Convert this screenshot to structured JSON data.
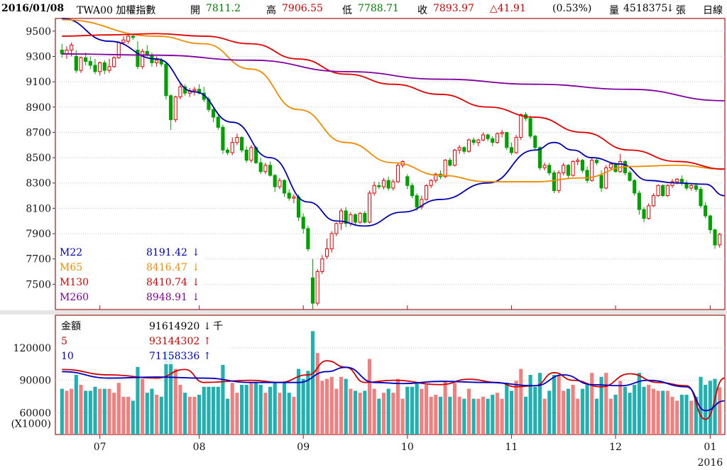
{
  "header": {
    "date": "2016/01/08",
    "symbol": "TWA00 加權指數",
    "open_label": "開",
    "open": "7811.2",
    "high_label": "高",
    "high": "7906.55",
    "low_label": "低",
    "low": "7788.71",
    "close_label": "收",
    "close": "7893.97",
    "change": "△41.91",
    "change_pct": "(0.53%)",
    "volume_label": "量",
    "volume": "4518375",
    "volume_arrow": "↓",
    "volume_unit": "張",
    "period": "日線"
  },
  "colors": {
    "up": "#e60000",
    "up_fill": "#ffffff",
    "down": "#00a000",
    "m22": "#0000b0",
    "m65": "#f08c00",
    "m130": "#e00000",
    "m260": "#8000a0",
    "vol_up": "#f08080",
    "vol_down": "#20b0b0",
    "vol_ma5": "#d00000",
    "vol_ma10": "#0000c0",
    "frame": "#9c1c1c",
    "grid": "#c8c8c8"
  },
  "chart_data": [
    {
      "type": "candlestick",
      "name": "price",
      "ylim": [
        7300,
        9600
      ],
      "y_ticks": [
        9500,
        9300,
        9100,
        8900,
        8700,
        8500,
        8300,
        8100,
        7900,
        7700,
        7500
      ],
      "x_ticks": [
        "07",
        "08",
        "09",
        "10",
        "11",
        "12",
        "01"
      ],
      "x_sub_label": "2016",
      "candles": [
        [
          9350,
          9400,
          9290,
          9320
        ],
        [
          9320,
          9380,
          9280,
          9350
        ],
        [
          9350,
          9410,
          9300,
          9390
        ],
        [
          9300,
          9350,
          9170,
          9190
        ],
        [
          9190,
          9300,
          9170,
          9290
        ],
        [
          9290,
          9330,
          9230,
          9260
        ],
        [
          9260,
          9300,
          9200,
          9230
        ],
        [
          9230,
          9280,
          9160,
          9180
        ],
        [
          9180,
          9260,
          9150,
          9250
        ],
        [
          9250,
          9270,
          9160,
          9190
        ],
        [
          9190,
          9280,
          9170,
          9220
        ],
        [
          9220,
          9300,
          9210,
          9290
        ],
        [
          9290,
          9420,
          9280,
          9410
        ],
        [
          9410,
          9460,
          9390,
          9430
        ],
        [
          9420,
          9470,
          9400,
          9460
        ],
        [
          9460,
          9480,
          9430,
          9450
        ],
        [
          9350,
          9420,
          9200,
          9220
        ],
        [
          9220,
          9360,
          9200,
          9340
        ],
        [
          9340,
          9390,
          9300,
          9310
        ],
        [
          9310,
          9330,
          9220,
          9250
        ],
        [
          9250,
          9300,
          9220,
          9270
        ],
        [
          9270,
          9290,
          9220,
          9240
        ],
        [
          9240,
          9260,
          8960,
          8990
        ],
        [
          8990,
          9000,
          8720,
          8800
        ],
        [
          8800,
          8990,
          8780,
          8980
        ],
        [
          8980,
          9090,
          8960,
          9060
        ],
        [
          9060,
          9080,
          8990,
          9010
        ],
        [
          9010,
          9050,
          8980,
          9030
        ],
        [
          9030,
          9060,
          8990,
          9040
        ],
        [
          9040,
          9080,
          9000,
          9010
        ],
        [
          9010,
          9060,
          8940,
          8960
        ],
        [
          8960,
          8980,
          8860,
          8880
        ],
        [
          8880,
          8900,
          8780,
          8820
        ],
        [
          8820,
          8840,
          8720,
          8740
        ],
        [
          8740,
          8760,
          8530,
          8560
        ],
        [
          8560,
          8580,
          8520,
          8540
        ],
        [
          8540,
          8660,
          8520,
          8620
        ],
        [
          8620,
          8690,
          8600,
          8660
        ],
        [
          8660,
          8670,
          8540,
          8560
        ],
        [
          8560,
          8590,
          8460,
          8480
        ],
        [
          8480,
          8600,
          8460,
          8580
        ],
        [
          8580,
          8590,
          8450,
          8460
        ],
        [
          8460,
          8500,
          8370,
          8390
        ],
        [
          8390,
          8460,
          8370,
          8440
        ],
        [
          8440,
          8470,
          8350,
          8360
        ],
        [
          8360,
          8370,
          8230,
          8270
        ],
        [
          8270,
          8340,
          8250,
          8320
        ],
        [
          8320,
          8330,
          8190,
          8220
        ],
        [
          8220,
          8250,
          8160,
          8180
        ],
        [
          8180,
          8210,
          8140,
          8190
        ],
        [
          8190,
          8210,
          8000,
          8030
        ],
        [
          8030,
          8060,
          7900,
          7940
        ],
        [
          7940,
          7960,
          7760,
          7780
        ],
        [
          7550,
          7700,
          7300,
          7350
        ],
        [
          7350,
          7620,
          7330,
          7600
        ],
        [
          7600,
          7730,
          7580,
          7700
        ],
        [
          7720,
          7860,
          7700,
          7780
        ],
        [
          7780,
          7920,
          7750,
          7900
        ],
        [
          7900,
          7990,
          7880,
          7980
        ],
        [
          7980,
          8100,
          7930,
          8080
        ],
        [
          8080,
          8110,
          7950,
          7980
        ],
        [
          7980,
          8070,
          7960,
          8050
        ],
        [
          8050,
          8060,
          7960,
          7990
        ],
        [
          7990,
          8070,
          7980,
          8060
        ],
        [
          8060,
          8080,
          7980,
          7990
        ],
        [
          7990,
          8240,
          7980,
          8220
        ],
        [
          8220,
          8310,
          8200,
          8280
        ],
        [
          8280,
          8310,
          8250,
          8270
        ],
        [
          8270,
          8340,
          8250,
          8320
        ],
        [
          8320,
          8350,
          8240,
          8260
        ],
        [
          8260,
          8330,
          8240,
          8310
        ],
        [
          8310,
          8460,
          8300,
          8440
        ],
        [
          8440,
          8480,
          8420,
          8470
        ],
        [
          8350,
          8370,
          8250,
          8280
        ],
        [
          8280,
          8300,
          8180,
          8200
        ],
        [
          8200,
          8220,
          8080,
          8110
        ],
        [
          8110,
          8200,
          8090,
          8170
        ],
        [
          8170,
          8290,
          8160,
          8280
        ],
        [
          8280,
          8330,
          8260,
          8320
        ],
        [
          8320,
          8380,
          8300,
          8370
        ],
        [
          8370,
          8400,
          8330,
          8350
        ],
        [
          8350,
          8490,
          8340,
          8480
        ],
        [
          8480,
          8500,
          8430,
          8440
        ],
        [
          8440,
          8570,
          8430,
          8560
        ],
        [
          8560,
          8600,
          8530,
          8580
        ],
        [
          8580,
          8590,
          8530,
          8550
        ],
        [
          8550,
          8650,
          8540,
          8640
        ],
        [
          8640,
          8660,
          8600,
          8620
        ],
        [
          8620,
          8650,
          8590,
          8640
        ],
        [
          8640,
          8700,
          8630,
          8680
        ],
        [
          8680,
          8690,
          8630,
          8650
        ],
        [
          8650,
          8670,
          8590,
          8620
        ],
        [
          8620,
          8700,
          8610,
          8690
        ],
        [
          8690,
          8720,
          8660,
          8700
        ],
        [
          8700,
          8700,
          8560,
          8580
        ],
        [
          8580,
          8620,
          8520,
          8540
        ],
        [
          8540,
          8680,
          8530,
          8660
        ],
        [
          8660,
          8850,
          8640,
          8840
        ],
        [
          8840,
          8860,
          8790,
          8810
        ],
        [
          8810,
          8830,
          8650,
          8670
        ],
        [
          8670,
          8680,
          8560,
          8580
        ],
        [
          8580,
          8590,
          8400,
          8420
        ],
        [
          8420,
          8460,
          8400,
          8440
        ],
        [
          8440,
          8460,
          8360,
          8380
        ],
        [
          8380,
          8400,
          8220,
          8240
        ],
        [
          8240,
          8400,
          8220,
          8380
        ],
        [
          8380,
          8460,
          8360,
          8440
        ],
        [
          8440,
          8450,
          8340,
          8360
        ],
        [
          8360,
          8480,
          8350,
          8470
        ],
        [
          8470,
          8500,
          8440,
          8480
        ],
        [
          8480,
          8490,
          8380,
          8400
        ],
        [
          8400,
          8430,
          8300,
          8320
        ],
        [
          8320,
          8500,
          8310,
          8480
        ],
        [
          8480,
          8500,
          8440,
          8460
        ],
        [
          8360,
          8400,
          8230,
          8260
        ],
        [
          8260,
          8440,
          8250,
          8420
        ],
        [
          8420,
          8460,
          8400,
          8450
        ],
        [
          8450,
          8460,
          8380,
          8390
        ],
        [
          8390,
          8530,
          8380,
          8470
        ],
        [
          8470,
          8480,
          8360,
          8380
        ],
        [
          8380,
          8400,
          8310,
          8320
        ],
        [
          8320,
          8330,
          8200,
          8220
        ],
        [
          8220,
          8240,
          8050,
          8090
        ],
        [
          8090,
          8110,
          7990,
          8020
        ],
        [
          8020,
          8140,
          8010,
          8120
        ],
        [
          8120,
          8220,
          8110,
          8200
        ],
        [
          8200,
          8290,
          8190,
          8280
        ],
        [
          8280,
          8290,
          8190,
          8200
        ],
        [
          8200,
          8290,
          8190,
          8280
        ],
        [
          8280,
          8330,
          8260,
          8310
        ],
        [
          8310,
          8340,
          8290,
          8330
        ],
        [
          8330,
          8360,
          8280,
          8300
        ],
        [
          8300,
          8320,
          8240,
          8260
        ],
        [
          8260,
          8290,
          8240,
          8280
        ],
        [
          8280,
          8300,
          8230,
          8250
        ],
        [
          8250,
          8270,
          8100,
          8120
        ],
        [
          8120,
          8150,
          8020,
          8040
        ],
        [
          8040,
          8050,
          7900,
          7930
        ],
        [
          7930,
          7940,
          7780,
          7810
        ],
        [
          7811.2,
          7906.55,
          7788.71,
          7893.97
        ]
      ],
      "moving_averages": [
        {
          "name": "M22",
          "value": "8191.42",
          "arrow": "↓"
        },
        {
          "name": "M65",
          "value": "8416.47",
          "arrow": "↓"
        },
        {
          "name": "M130",
          "value": "8410.74",
          "arrow": "↓"
        },
        {
          "name": "M260",
          "value": "8948.91",
          "arrow": "↓"
        }
      ],
      "ma_lines": {
        "M22": [
          [
            0,
            9600
          ],
          [
            10,
            9420
          ],
          [
            20,
            9280
          ],
          [
            28,
            9020
          ],
          [
            36,
            8780
          ],
          [
            44,
            8500
          ],
          [
            52,
            8150
          ],
          [
            58,
            8000
          ],
          [
            64,
            7960
          ],
          [
            72,
            8070
          ],
          [
            80,
            8170
          ],
          [
            90,
            8300
          ],
          [
            100,
            8560
          ],
          [
            104,
            8620
          ],
          [
            108,
            8560
          ],
          [
            112,
            8500
          ],
          [
            118,
            8450
          ],
          [
            124,
            8320
          ],
          [
            130,
            8300
          ],
          [
            136,
            8290
          ],
          [
            140,
            8200
          ]
        ],
        "M65": [
          [
            0,
            9590
          ],
          [
            20,
            9460
          ],
          [
            30,
            9400
          ],
          [
            40,
            9200
          ],
          [
            50,
            8880
          ],
          [
            60,
            8620
          ],
          [
            70,
            8460
          ],
          [
            80,
            8360
          ],
          [
            90,
            8310
          ],
          [
            100,
            8310
          ],
          [
            110,
            8340
          ],
          [
            120,
            8430
          ],
          [
            130,
            8440
          ],
          [
            140,
            8410
          ]
        ],
        "M130": [
          [
            0,
            9460
          ],
          [
            10,
            9470
          ],
          [
            20,
            9480
          ],
          [
            30,
            9460
          ],
          [
            40,
            9400
          ],
          [
            50,
            9280
          ],
          [
            60,
            9160
          ],
          [
            70,
            9080
          ],
          [
            80,
            9000
          ],
          [
            90,
            8900
          ],
          [
            100,
            8820
          ],
          [
            110,
            8700
          ],
          [
            120,
            8560
          ],
          [
            130,
            8470
          ],
          [
            140,
            8410
          ]
        ],
        "M260": [
          [
            0,
            9320
          ],
          [
            20,
            9310
          ],
          [
            40,
            9270
          ],
          [
            60,
            9180
          ],
          [
            80,
            9120
          ],
          [
            100,
            9080
          ],
          [
            120,
            9040
          ],
          [
            140,
            8950
          ]
        ]
      }
    },
    {
      "type": "bar",
      "name": "turnover",
      "ylim": [
        40000,
        150000
      ],
      "y_ticks": [
        120000,
        90000,
        60000
      ],
      "y_unit_label": "(X1000)",
      "legend": [
        {
          "name": "金額",
          "value": "91614920",
          "arrow": "↓",
          "unit": "千"
        },
        {
          "name": "5",
          "value": "93144302",
          "arrow": "↑",
          "unit": ""
        },
        {
          "name": "10",
          "value": "71158336",
          "arrow": "↑",
          "unit": ""
        }
      ],
      "ma5_line": [
        [
          0,
          100000
        ],
        [
          10,
          95000
        ],
        [
          20,
          92000
        ],
        [
          26,
          100000
        ],
        [
          30,
          88000
        ],
        [
          40,
          90000
        ],
        [
          46,
          88000
        ],
        [
          52,
          95000
        ],
        [
          56,
          108000
        ],
        [
          60,
          102000
        ],
        [
          64,
          88000
        ],
        [
          70,
          90000
        ],
        [
          80,
          86000
        ],
        [
          86,
          91000
        ],
        [
          92,
          88000
        ],
        [
          96,
          84000
        ],
        [
          100,
          85000
        ],
        [
          104,
          97000
        ],
        [
          108,
          90000
        ],
        [
          114,
          84000
        ],
        [
          120,
          96000
        ],
        [
          126,
          88000
        ],
        [
          132,
          85000
        ],
        [
          136,
          54000
        ],
        [
          140,
          92000
        ]
      ],
      "ma10_line": [
        [
          0,
          98000
        ],
        [
          10,
          92000
        ],
        [
          20,
          93000
        ],
        [
          30,
          92000
        ],
        [
          40,
          88000
        ],
        [
          50,
          88000
        ],
        [
          56,
          98000
        ],
        [
          60,
          102000
        ],
        [
          66,
          88000
        ],
        [
          72,
          87000
        ],
        [
          80,
          89000
        ],
        [
          90,
          88000
        ],
        [
          100,
          85000
        ],
        [
          106,
          95000
        ],
        [
          112,
          86000
        ],
        [
          118,
          85000
        ],
        [
          124,
          90000
        ],
        [
          132,
          84000
        ],
        [
          136,
          62000
        ],
        [
          140,
          71000
        ]
      ]
    }
  ]
}
